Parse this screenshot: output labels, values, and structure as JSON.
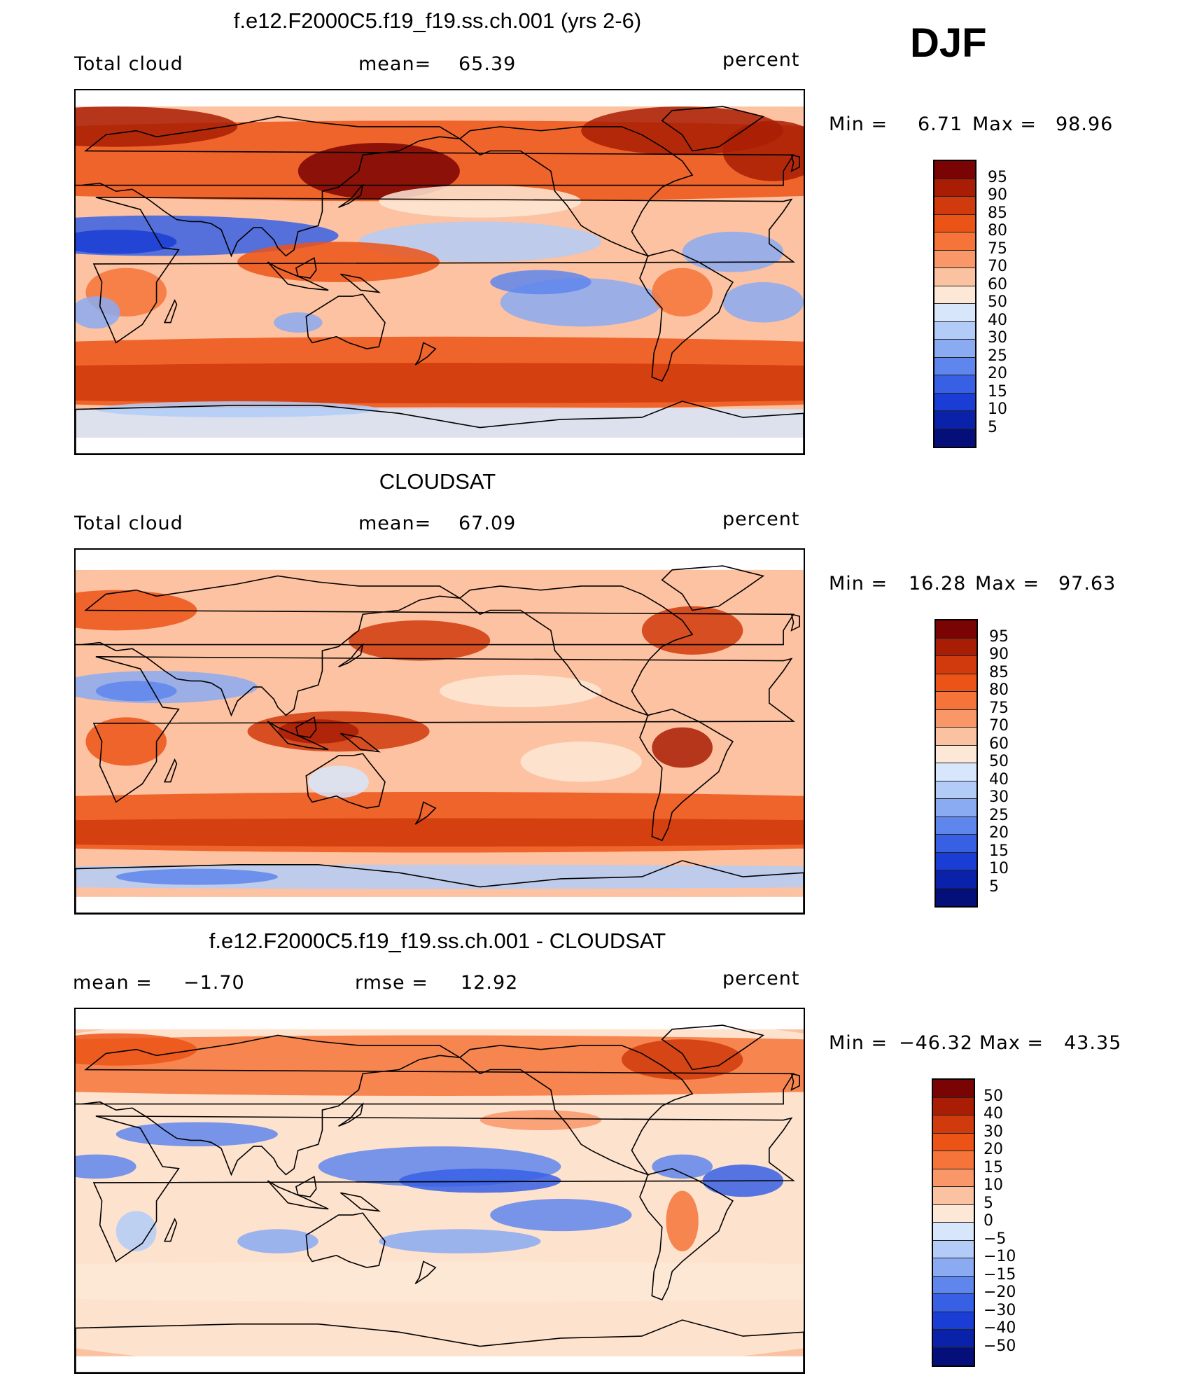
{
  "season": "DJF",
  "panels": [
    {
      "title": "f.e12.F2000C5.f19_f19.ss.ch.001 (yrs 2-6)",
      "left_label": "Total cloud",
      "stat1_label": "mean=",
      "stat1_value": "65.39",
      "units": "percent",
      "min_label": "Min =",
      "min_value": "6.71",
      "max_label": "Max =",
      "max_value": "98.96",
      "colorbar_labels": [
        "95",
        "90",
        "85",
        "80",
        "75",
        "70",
        "60",
        "50",
        "40",
        "30",
        "25",
        "20",
        "15",
        "10",
        "5"
      ]
    },
    {
      "title": "CLOUDSAT",
      "left_label": "Total cloud",
      "stat1_label": "mean=",
      "stat1_value": "67.09",
      "units": "percent",
      "min_label": "Min =",
      "min_value": "16.28",
      "max_label": "Max =",
      "max_value": "97.63",
      "colorbar_labels": [
        "95",
        "90",
        "85",
        "80",
        "75",
        "70",
        "60",
        "50",
        "40",
        "30",
        "25",
        "20",
        "15",
        "10",
        "5"
      ]
    },
    {
      "title": "f.e12.F2000C5.f19_f19.ss.ch.001 - CLOUDSAT",
      "left_label": "mean =",
      "left_value": "−1.70",
      "stat1_label": "rmse =",
      "stat1_value": "12.92",
      "units": "percent",
      "min_label": "Min =",
      "min_value": "−46.32",
      "max_label": "Max =",
      "max_value": "43.35",
      "colorbar_labels": [
        "50",
        "40",
        "30",
        "20",
        "15",
        "10",
        "5",
        "0",
        "−5",
        "−10",
        "−15",
        "−20",
        "−30",
        "−40",
        "−50"
      ]
    }
  ],
  "colors": {
    "palette": [
      "#7a0403",
      "#a91d05",
      "#d03a0c",
      "#ec5316",
      "#f6743a",
      "#f99769",
      "#fbc2a1",
      "#fde7d6",
      "#d7e6fb",
      "#b3ccf7",
      "#8aaaf2",
      "#5f86ec",
      "#3760e5",
      "#1a3ed5",
      "#0a22aa",
      "#050f7a"
    ],
    "coast": "#000000",
    "frame": "#000000"
  }
}
